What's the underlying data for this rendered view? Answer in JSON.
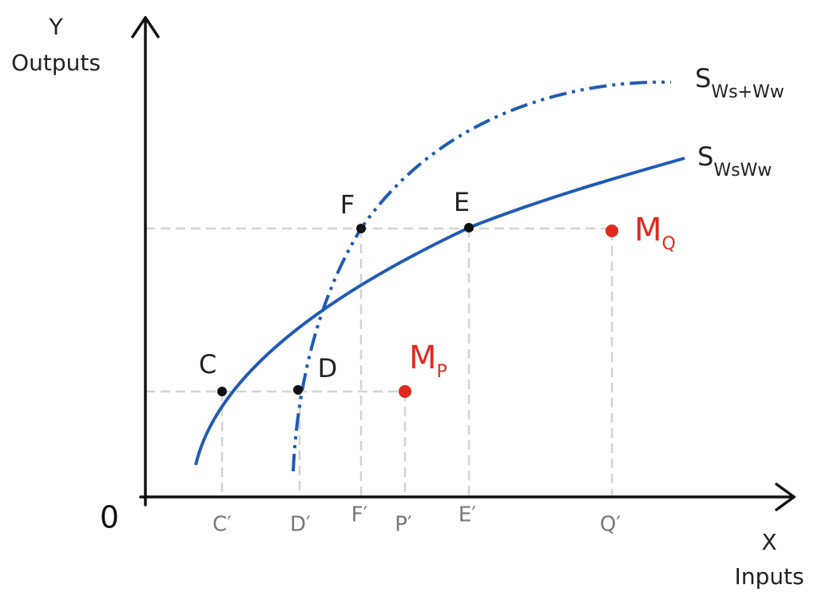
{
  "axes": {
    "y_symbol": "Y",
    "y_label": "Outputs",
    "x_symbol": "X",
    "x_label": "Inputs",
    "origin": "0"
  },
  "curves": [
    {
      "label": "S",
      "subscript": "Ws+Ww"
    },
    {
      "label": "S",
      "subscript": "WsWw"
    }
  ],
  "points": [
    {
      "label": "C"
    },
    {
      "label": "D"
    },
    {
      "label": "F"
    },
    {
      "label": "E"
    }
  ],
  "firms": [
    {
      "label": "M",
      "subscript": "P"
    },
    {
      "label": "M",
      "subscript": "Q"
    }
  ],
  "projections": [
    "C′",
    "D′",
    "F′",
    "P′",
    "E′",
    "Q′"
  ]
}
